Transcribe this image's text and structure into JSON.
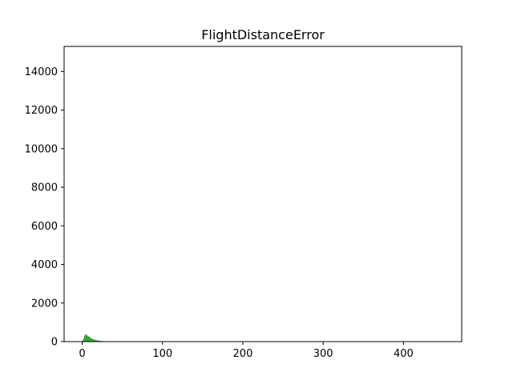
{
  "chart_data": {
    "type": "bar",
    "title": "FlightDistanceError",
    "xlabel": "",
    "ylabel": "",
    "xlim": [
      -22.5,
      472.5
    ],
    "ylim": [
      0,
      15300
    ],
    "x_ticks": [
      0,
      100,
      200,
      300,
      400
    ],
    "y_ticks": [
      0,
      2000,
      4000,
      6000,
      8000,
      10000,
      12000,
      14000
    ],
    "bar_color": "#2ca02c",
    "bin_width": 1,
    "bins": [
      {
        "x": 1,
        "value": 80
      },
      {
        "x": 2,
        "value": 180
      },
      {
        "x": 3,
        "value": 300
      },
      {
        "x": 4,
        "value": 380
      },
      {
        "x": 5,
        "value": 360
      },
      {
        "x": 6,
        "value": 330
      },
      {
        "x": 7,
        "value": 300
      },
      {
        "x": 8,
        "value": 270
      },
      {
        "x": 9,
        "value": 240
      },
      {
        "x": 10,
        "value": 210
      },
      {
        "x": 11,
        "value": 185
      },
      {
        "x": 12,
        "value": 160
      },
      {
        "x": 13,
        "value": 140
      },
      {
        "x": 14,
        "value": 120
      },
      {
        "x": 15,
        "value": 105
      },
      {
        "x": 16,
        "value": 92
      },
      {
        "x": 17,
        "value": 80
      },
      {
        "x": 18,
        "value": 70
      },
      {
        "x": 19,
        "value": 62
      },
      {
        "x": 20,
        "value": 55
      },
      {
        "x": 21,
        "value": 48
      },
      {
        "x": 22,
        "value": 42
      },
      {
        "x": 23,
        "value": 37
      },
      {
        "x": 24,
        "value": 33
      },
      {
        "x": 25,
        "value": 29
      },
      {
        "x": 26,
        "value": 26
      },
      {
        "x": 27,
        "value": 23
      },
      {
        "x": 28,
        "value": 20
      },
      {
        "x": 29,
        "value": 18
      },
      {
        "x": 30,
        "value": 16
      },
      {
        "x": 31,
        "value": 14
      },
      {
        "x": 32,
        "value": 12
      },
      {
        "x": 33,
        "value": 10
      },
      {
        "x": 34,
        "value": 9
      },
      {
        "x": 35,
        "value": 8
      },
      {
        "x": 36,
        "value": 7
      },
      {
        "x": 38,
        "value": 6
      },
      {
        "x": 40,
        "value": 5
      },
      {
        "x": 44,
        "value": 15
      }
    ]
  }
}
